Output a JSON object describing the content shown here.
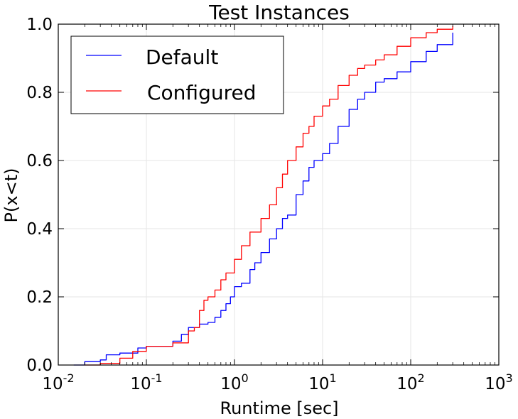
{
  "chart_data": {
    "type": "line",
    "title": "Test Instances",
    "xlabel": "Runtime [sec]",
    "ylabel": "P(x<t)",
    "xscale": "log",
    "xlim": [
      0.01,
      1000
    ],
    "ylim": [
      0,
      1
    ],
    "grid": true,
    "legend_position": "top-left",
    "xticks": [
      {
        "value": 0.01,
        "base": "10",
        "exp": "-2"
      },
      {
        "value": 0.1,
        "base": "10",
        "exp": "-1"
      },
      {
        "value": 1,
        "base": "10",
        "exp": "0"
      },
      {
        "value": 10,
        "base": "10",
        "exp": "1"
      },
      {
        "value": 100,
        "base": "10",
        "exp": "2"
      },
      {
        "value": 1000,
        "base": "10",
        "exp": "3"
      }
    ],
    "yticks": [
      {
        "value": 0.0,
        "label": "0.0"
      },
      {
        "value": 0.2,
        "label": "0.2"
      },
      {
        "value": 0.4,
        "label": "0.4"
      },
      {
        "value": 0.6,
        "label": "0.6"
      },
      {
        "value": 0.8,
        "label": "0.8"
      },
      {
        "value": 1.0,
        "label": "1.0"
      }
    ],
    "series": [
      {
        "name": "Default",
        "color": "#0000ff",
        "points": [
          [
            0.015,
            0.0
          ],
          [
            0.02,
            0.01
          ],
          [
            0.03,
            0.015
          ],
          [
            0.035,
            0.03
          ],
          [
            0.05,
            0.035
          ],
          [
            0.08,
            0.05
          ],
          [
            0.1,
            0.055
          ],
          [
            0.2,
            0.07
          ],
          [
            0.25,
            0.09
          ],
          [
            0.3,
            0.11
          ],
          [
            0.4,
            0.12
          ],
          [
            0.5,
            0.125
          ],
          [
            0.6,
            0.14
          ],
          [
            0.7,
            0.16
          ],
          [
            0.8,
            0.18
          ],
          [
            0.9,
            0.2
          ],
          [
            1.0,
            0.23
          ],
          [
            1.2,
            0.24
          ],
          [
            1.5,
            0.28
          ],
          [
            1.7,
            0.3
          ],
          [
            2.0,
            0.33
          ],
          [
            2.5,
            0.37
          ],
          [
            3.0,
            0.4
          ],
          [
            3.5,
            0.43
          ],
          [
            4.0,
            0.44
          ],
          [
            5.0,
            0.5
          ],
          [
            6.0,
            0.54
          ],
          [
            7.0,
            0.58
          ],
          [
            8.0,
            0.6
          ],
          [
            10.0,
            0.62
          ],
          [
            12.0,
            0.65
          ],
          [
            15.0,
            0.7
          ],
          [
            20.0,
            0.75
          ],
          [
            25.0,
            0.78
          ],
          [
            30.0,
            0.8
          ],
          [
            40.0,
            0.83
          ],
          [
            50.0,
            0.84
          ],
          [
            70.0,
            0.86
          ],
          [
            100.0,
            0.89
          ],
          [
            150.0,
            0.92
          ],
          [
            200.0,
            0.94
          ],
          [
            300.0,
            0.975
          ]
        ]
      },
      {
        "name": "Configured",
        "color": "#ff0000",
        "points": [
          [
            0.02,
            0.0
          ],
          [
            0.03,
            0.005
          ],
          [
            0.05,
            0.02
          ],
          [
            0.07,
            0.04
          ],
          [
            0.1,
            0.055
          ],
          [
            0.2,
            0.065
          ],
          [
            0.3,
            0.1
          ],
          [
            0.35,
            0.11
          ],
          [
            0.4,
            0.16
          ],
          [
            0.45,
            0.19
          ],
          [
            0.5,
            0.2
          ],
          [
            0.6,
            0.22
          ],
          [
            0.7,
            0.25
          ],
          [
            0.8,
            0.27
          ],
          [
            1.0,
            0.31
          ],
          [
            1.2,
            0.35
          ],
          [
            1.5,
            0.39
          ],
          [
            2.0,
            0.43
          ],
          [
            2.5,
            0.47
          ],
          [
            3.0,
            0.52
          ],
          [
            3.5,
            0.56
          ],
          [
            4.0,
            0.6
          ],
          [
            5.0,
            0.64
          ],
          [
            6.0,
            0.68
          ],
          [
            7.0,
            0.7
          ],
          [
            8.0,
            0.73
          ],
          [
            10.0,
            0.76
          ],
          [
            12.0,
            0.78
          ],
          [
            15.0,
            0.82
          ],
          [
            20.0,
            0.85
          ],
          [
            25.0,
            0.87
          ],
          [
            30.0,
            0.88
          ],
          [
            40.0,
            0.895
          ],
          [
            50.0,
            0.91
          ],
          [
            70.0,
            0.935
          ],
          [
            100.0,
            0.96
          ],
          [
            150.0,
            0.975
          ],
          [
            200.0,
            0.985
          ],
          [
            300.0,
            0.995
          ]
        ]
      }
    ]
  }
}
